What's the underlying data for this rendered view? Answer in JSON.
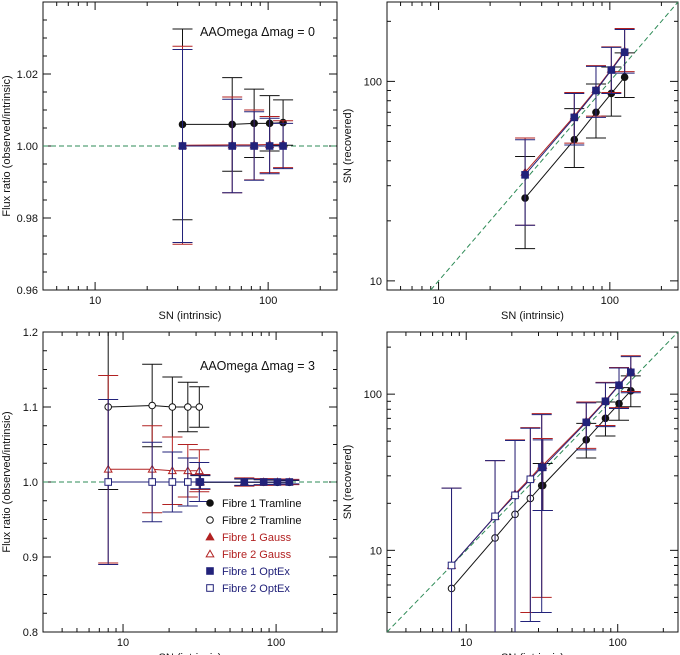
{
  "colors": {
    "black": "#111111",
    "red": "#b22222",
    "blue": "#22227a",
    "ref": "#2e8b57"
  },
  "legend": [
    {
      "label": "Fibre 1 Tramline",
      "color": "#111111",
      "marker": "filled-circle"
    },
    {
      "label": "Fibre 2 Tramline",
      "color": "#111111",
      "marker": "open-circle"
    },
    {
      "label": "Fibre 1 Gauss",
      "color": "#b22222",
      "marker": "filled-triangle"
    },
    {
      "label": "Fibre 2 Gauss",
      "color": "#b22222",
      "marker": "open-triangle"
    },
    {
      "label": "Fibre 1 OptEx",
      "color": "#22227a",
      "marker": "filled-square"
    },
    {
      "label": "Fibre 2 OptEx",
      "color": "#22227a",
      "marker": "open-square"
    }
  ],
  "chart_data": [
    {
      "type": "scatter",
      "annotation": "AAOmega Δmag = 0",
      "xlabel": "SN (intrinsic)",
      "ylabel": "Flux ratio (observed/intrinsic)",
      "xscale": "log",
      "xlim": [
        5,
        250
      ],
      "ylim": [
        0.96,
        1.04
      ],
      "xticks": [
        {
          "v": 10,
          "label": "10"
        },
        {
          "v": 100,
          "label": "100"
        }
      ],
      "yticks": [
        {
          "v": 0.96,
          "label": "0.96"
        },
        {
          "v": 0.98,
          "label": "0.98"
        },
        {
          "v": 1.0,
          "label": "1.00"
        },
        {
          "v": 1.02,
          "label": "1.02"
        }
      ],
      "hline": 1.0,
      "series": [
        {
          "id": "f1-tram",
          "color": "#111111",
          "marker": "filled-circle",
          "x": [
            32,
            62,
            83,
            102,
            122
          ],
          "y": [
            1.006,
            1.006,
            1.0063,
            1.0063,
            1.0065
          ],
          "err": [
            0.0265,
            0.013,
            0.0095,
            0.0077,
            0.0063
          ]
        },
        {
          "id": "f1-gauss",
          "color": "#b22222",
          "marker": "filled-triangle",
          "x": [
            32,
            62,
            83,
            102,
            122
          ],
          "y": [
            1.0002,
            1.0003,
            1.0003,
            1.0004,
            1.0005
          ],
          "err": [
            0.0275,
            0.0133,
            0.0097,
            0.0078,
            0.0065
          ]
        },
        {
          "id": "f1-optex",
          "color": "#22227a",
          "marker": "filled-square",
          "x": [
            32,
            62,
            83,
            102,
            122
          ],
          "y": [
            1.0,
            1.0,
            1.0,
            1.0,
            1.0
          ],
          "err": [
            0.0268,
            0.013,
            0.0095,
            0.0077,
            0.0063
          ]
        }
      ]
    },
    {
      "type": "scatter",
      "xlabel": "SN (intrinsic)",
      "ylabel": "SN (recovered)",
      "xscale": "log",
      "yscale": "log",
      "xlim": [
        5,
        250
      ],
      "ylim": [
        9,
        250
      ],
      "xticks": [
        {
          "v": 10,
          "label": "10"
        },
        {
          "v": 100,
          "label": "100"
        }
      ],
      "yticks": [
        {
          "v": 10,
          "label": "10"
        },
        {
          "v": 100,
          "label": "100"
        }
      ],
      "diagonal": true,
      "series": [
        {
          "id": "f1-tram",
          "color": "#111111",
          "marker": "filled-circle",
          "connect": true,
          "x": [
            32,
            62,
            83,
            102,
            122
          ],
          "y": [
            26,
            51,
            70,
            87,
            105
          ],
          "err_lo": [
            11.5,
            14,
            18,
            20,
            22
          ],
          "err_hi": [
            16,
            22,
            27,
            31,
            34
          ]
        },
        {
          "id": "f1-gauss",
          "color": "#b22222",
          "marker": "filled-triangle",
          "connect": true,
          "x": [
            32,
            62,
            83,
            102,
            122
          ],
          "y": [
            35,
            67,
            91,
            115,
            142
          ],
          "err_lo": [
            16,
            18,
            24,
            27,
            30
          ],
          "err_hi": [
            17,
            21,
            29,
            34,
            42
          ]
        },
        {
          "id": "f1-optex",
          "color": "#22227a",
          "marker": "filled-square",
          "connect": true,
          "x": [
            32,
            62,
            83,
            102,
            122
          ],
          "y": [
            34,
            66,
            90,
            114,
            140
          ],
          "err_lo": [
            15,
            18,
            24,
            27,
            30
          ],
          "err_hi": [
            17,
            21,
            29,
            34,
            42
          ]
        }
      ]
    },
    {
      "type": "scatter",
      "annotation": "AAOmega Δmag = 3",
      "xlabel": "SN (intrinsic)",
      "ylabel": "Flux ratio (observed/intrinsic)",
      "xscale": "log",
      "xlim": [
        3,
        250
      ],
      "ylim": [
        0.8,
        1.2
      ],
      "xticks": [
        {
          "v": 10,
          "label": "10"
        },
        {
          "v": 100,
          "label": "100"
        }
      ],
      "yticks": [
        {
          "v": 0.8,
          "label": "0.8"
        },
        {
          "v": 0.9,
          "label": "0.9"
        },
        {
          "v": 1.0,
          "label": "1.0"
        },
        {
          "v": 1.1,
          "label": "1.1"
        },
        {
          "v": 1.2,
          "label": "1.2"
        }
      ],
      "hline": 1.0,
      "series": [
        {
          "id": "f2-tram",
          "color": "#111111",
          "marker": "open-circle",
          "x": [
            8,
            15.5,
            21,
            26.5,
            31.5
          ],
          "y": [
            1.1,
            1.102,
            1.1,
            1.1,
            1.1
          ],
          "err": [
            0.11,
            0.055,
            0.04,
            0.033,
            0.027
          ]
        },
        {
          "id": "f2-gauss",
          "color": "#b22222",
          "marker": "open-triangle",
          "x": [
            8,
            15.5,
            21,
            26.5,
            31.5
          ],
          "y": [
            1.017,
            1.017,
            1.015,
            1.015,
            1.015
          ],
          "err": [
            0.125,
            0.058,
            0.045,
            0.035,
            0.028
          ]
        },
        {
          "id": "f2-optex",
          "color": "#22227a",
          "marker": "open-square",
          "x": [
            8,
            15.5,
            21,
            26.5,
            31.5
          ],
          "y": [
            1.0,
            1.0,
            1.0,
            1.0,
            1.0
          ],
          "err": [
            0.11,
            0.053,
            0.04,
            0.032,
            0.026
          ]
        },
        {
          "id": "f1-tram",
          "color": "#111111",
          "marker": "filled-circle",
          "x": [
            32,
            62,
            83,
            102,
            122
          ],
          "y": [
            0.9995,
            0.9995,
            0.9995,
            0.9995,
            0.9995
          ],
          "err": [
            0.009,
            0.0045,
            0.0035,
            0.003,
            0.0025
          ]
        },
        {
          "id": "f1-gauss",
          "color": "#b22222",
          "marker": "filled-triangle",
          "x": [
            32,
            62,
            83,
            102,
            122
          ],
          "y": [
            1.0,
            1.0,
            1.0,
            1.0,
            1.0
          ],
          "err": [
            0.01,
            0.0055,
            0.0045,
            0.004,
            0.0035
          ]
        },
        {
          "id": "f1-optex",
          "color": "#22227a",
          "marker": "filled-square",
          "x": [
            32,
            62,
            83,
            102,
            122
          ],
          "y": [
            1.0,
            1.0,
            1.0,
            1.0,
            1.0
          ],
          "err": [
            0.009,
            0.0045,
            0.0035,
            0.003,
            0.0025
          ]
        }
      ]
    },
    {
      "type": "scatter",
      "xlabel": "SN (intrinsic)",
      "ylabel": "SN (recovered)",
      "xscale": "log",
      "yscale": "log",
      "xlim": [
        3,
        250
      ],
      "ylim": [
        3,
        250
      ],
      "xticks": [
        {
          "v": 10,
          "label": "10"
        },
        {
          "v": 100,
          "label": "100"
        }
      ],
      "yticks": [
        {
          "v": 10,
          "label": "10"
        },
        {
          "v": 100,
          "label": "100"
        }
      ],
      "diagonal": true,
      "series": [
        {
          "id": "f2-tram",
          "color": "#111111",
          "marker": "open-circle",
          "connect": true,
          "x": [
            8,
            15.5,
            21,
            26.5,
            31.5
          ],
          "y": [
            5.7,
            12,
            17,
            21.5,
            26
          ],
          "err_lo": [
            0,
            0,
            0,
            0,
            0
          ],
          "err_hi": [
            0,
            0,
            0,
            0,
            0
          ]
        },
        {
          "id": "f2-gauss",
          "color": "#b22222",
          "marker": "open-triangle",
          "connect": true,
          "x": [
            8,
            15.5,
            21,
            26.5,
            31.5
          ],
          "y": [
            8,
            16.5,
            23,
            29,
            35
          ],
          "err_lo": [
            6,
            14,
            20,
            25,
            30
          ],
          "err_hi": [
            17,
            21,
            28,
            32,
            40
          ]
        },
        {
          "id": "f2-optex",
          "color": "#22227a",
          "marker": "open-square",
          "connect": true,
          "x": [
            8,
            15.5,
            21,
            26.5,
            31.5
          ],
          "y": [
            8,
            16.5,
            22.5,
            28.5,
            34
          ],
          "err_lo": [
            6,
            14,
            20,
            25,
            30
          ],
          "err_hi": [
            17,
            21,
            28,
            32,
            40
          ]
        },
        {
          "id": "f1-tram",
          "color": "#111111",
          "marker": "filled-circle",
          "connect": true,
          "x": [
            32,
            62,
            83,
            102,
            122
          ],
          "y": [
            26,
            51,
            70,
            87,
            105
          ],
          "err_lo": [
            8,
            12,
            16,
            19,
            22
          ],
          "err_hi": [
            10,
            14,
            19,
            23,
            26
          ]
        },
        {
          "id": "f1-gauss",
          "color": "#b22222",
          "marker": "filled-triangle",
          "connect": true,
          "x": [
            32,
            62,
            83,
            102,
            122
          ],
          "y": [
            35,
            67,
            91,
            115,
            140
          ],
          "err_lo": [
            17,
            22,
            28,
            33,
            36
          ],
          "err_hi": [
            17,
            22,
            28,
            33,
            36
          ]
        },
        {
          "id": "f1-optex",
          "color": "#22227a",
          "marker": "filled-square",
          "connect": true,
          "x": [
            32,
            62,
            83,
            102,
            122
          ],
          "y": [
            34,
            66,
            90,
            114,
            138
          ],
          "err_lo": [
            16,
            22,
            28,
            33,
            36
          ],
          "err_hi": [
            17,
            22,
            28,
            33,
            36
          ]
        }
      ]
    }
  ]
}
